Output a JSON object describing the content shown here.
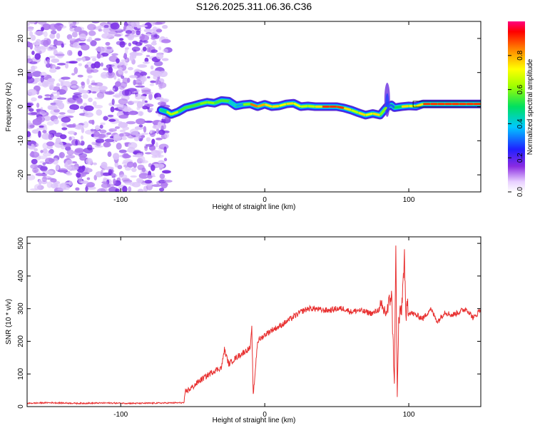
{
  "title": "S126.2025.311.06.36.C36",
  "chart_data": [
    {
      "type": "heatmap",
      "title": "S126.2025.311.06.36.C36",
      "xlabel": "Height of straight line (km)",
      "ylabel": "Frequency (Hz)",
      "xlim": [
        -165,
        150
      ],
      "ylim": [
        -25,
        25
      ],
      "xticks": [
        -100,
        0,
        100
      ],
      "yticks": [
        -20,
        -10,
        0,
        10,
        20
      ],
      "noise_region_x": [
        -165,
        -67
      ],
      "ridge": {
        "x": [
          -72,
          -68,
          -65,
          -60,
          -55,
          -50,
          -45,
          -40,
          -35,
          -30,
          -25,
          -20,
          -15,
          -10,
          -5,
          0,
          5,
          10,
          15,
          20,
          25,
          30,
          35,
          40,
          45,
          50,
          55,
          60,
          65,
          70,
          75,
          80,
          85,
          88,
          90,
          95,
          100,
          105,
          110,
          115,
          120,
          125,
          130,
          135,
          140,
          145,
          150
        ],
        "freq": [
          -1.0,
          -1.5,
          -2.3,
          -1.5,
          -0.3,
          0.2,
          0.8,
          1.3,
          1.0,
          1.8,
          1.6,
          0.2,
          0.6,
          0.8,
          0.0,
          0.7,
          0.0,
          0.2,
          0.8,
          1.0,
          0.0,
          0.2,
          0.0,
          0.0,
          0.0,
          0.0,
          -0.4,
          -1.0,
          -1.8,
          -2.5,
          -2.0,
          -2.5,
          0.0,
          0.5,
          -0.3,
          0.0,
          0.2,
          0.1,
          0.8,
          0.8,
          0.8,
          0.8,
          0.8,
          0.8,
          0.8,
          0.8,
          0.8
        ],
        "amplitude": [
          0.3,
          0.6,
          0.7,
          0.6,
          0.5,
          0.6,
          0.5,
          0.7,
          0.5,
          0.6,
          0.5,
          0.3,
          0.4,
          0.8,
          0.9,
          0.7,
          0.8,
          0.7,
          0.7,
          0.8,
          0.6,
          0.7,
          0.6,
          0.9,
          0.9,
          0.9,
          0.9,
          0.6,
          0.7,
          0.8,
          0.6,
          0.9,
          0.3,
          0.3,
          0.3,
          0.7,
          0.8,
          0.6,
          0.9,
          0.9,
          0.9,
          0.9,
          0.9,
          0.9,
          0.9,
          0.9,
          0.9
        ]
      },
      "colorbar": {
        "label": "Normalized spectral amplitude",
        "range": [
          0,
          1
        ],
        "ticks": [
          "0.0",
          "0.2",
          "0.4",
          "0.6",
          "0.8"
        ]
      }
    },
    {
      "type": "line",
      "xlabel": "Height of straight line (km)",
      "ylabel": "SNR (10 * v/v)",
      "xlim": [
        -165,
        150
      ],
      "ylim": [
        0,
        520
      ],
      "xticks": [
        -100,
        0,
        100
      ],
      "yticks": [
        0,
        100,
        200,
        300,
        400,
        500
      ],
      "color": "#e83030",
      "series": [
        {
          "x": [
            -165,
            -150,
            -130,
            -110,
            -90,
            -70,
            -56,
            -55,
            -50,
            -45,
            -40,
            -35,
            -30,
            -28,
            -25,
            -20,
            -15,
            -10,
            -9,
            -8,
            -5,
            0,
            5,
            10,
            15,
            20,
            25,
            30,
            35,
            40,
            45,
            50,
            55,
            60,
            65,
            70,
            75,
            80,
            85,
            88,
            90,
            91,
            92,
            93,
            95,
            97,
            98,
            99,
            100,
            105,
            110,
            115,
            120,
            125,
            130,
            135,
            140,
            145,
            150
          ],
          "y": [
            10,
            12,
            10,
            11,
            10,
            11,
            12,
            45,
            60,
            80,
            95,
            110,
            120,
            175,
            130,
            150,
            165,
            180,
            240,
            30,
            200,
            220,
            235,
            245,
            260,
            275,
            290,
            300,
            300,
            295,
            295,
            300,
            300,
            290,
            295,
            290,
            285,
            300,
            290,
            350,
            80,
            480,
            20,
            260,
            300,
            460,
            250,
            330,
            290,
            280,
            270,
            300,
            260,
            290,
            280,
            290,
            300,
            270,
            300
          ]
        }
      ]
    }
  ]
}
